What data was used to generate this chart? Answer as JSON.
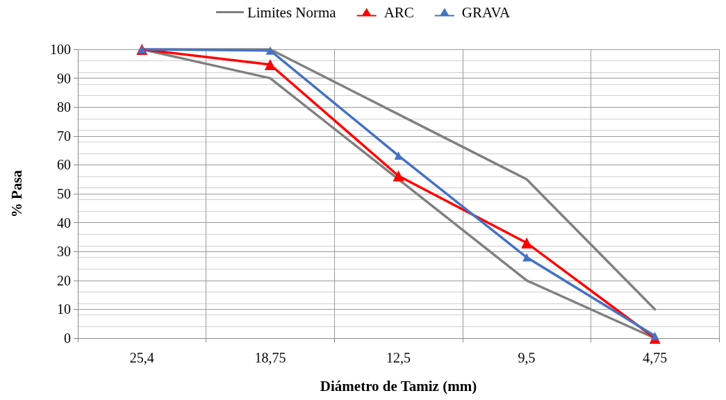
{
  "chart_data": {
    "type": "line",
    "xlabel": "Diámetro de Tamiz (mm)",
    "ylabel": "% Pasa",
    "categories": [
      "25,4",
      "18,75",
      "12,5",
      "9,5",
      "4,75"
    ],
    "series": [
      {
        "name": "Limites Norma",
        "color": "#808080",
        "marker": "none",
        "values": [
          100,
          90,
          55,
          20,
          0
        ]
      },
      {
        "color": "#808080",
        "marker": "none",
        "values": [
          100,
          100,
          77.5,
          55,
          10
        ]
      },
      {
        "name": "ARC",
        "color": "#ff0000",
        "marker": "triangle",
        "values": [
          100,
          94.7,
          56.2,
          33,
          0
        ]
      },
      {
        "name": "GRAVA",
        "color": "#4472c4",
        "marker": "triangle",
        "values": [
          100,
          99.6,
          63.2,
          28,
          0.8
        ]
      }
    ],
    "ylim": [
      0,
      100
    ],
    "yticks": [
      0,
      10,
      20,
      30,
      40,
      50,
      60,
      70,
      80,
      90,
      100
    ],
    "grid": true,
    "legend": "top",
    "line_style": "solid"
  }
}
